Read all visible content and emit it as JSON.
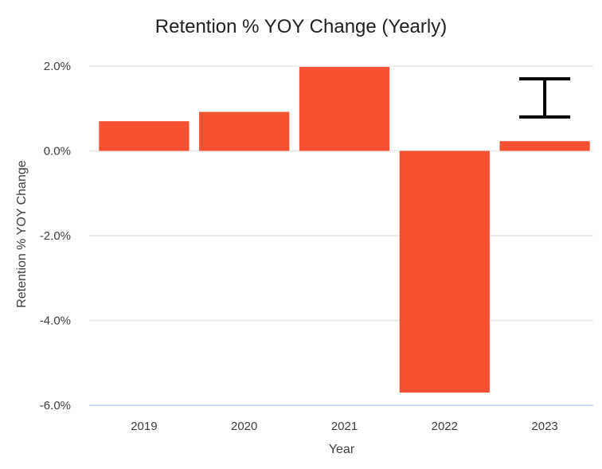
{
  "chart_data": {
    "type": "bar",
    "title": "Retention % YOY Change (Yearly)",
    "xlabel": "Year",
    "ylabel": "Retention % YOY Change",
    "categories": [
      "2019",
      "2020",
      "2021",
      "2022",
      "2023"
    ],
    "values": [
      0.7,
      0.92,
      1.98,
      -5.7,
      0.23
    ],
    "ylim": [
      -6.0,
      2.0
    ],
    "yticks": [
      {
        "value": 2.0,
        "label": "2.0%"
      },
      {
        "value": 0.0,
        "label": "0.0%"
      },
      {
        "value": -2.0,
        "label": "-2.0%"
      },
      {
        "value": -4.0,
        "label": "-4.0%"
      },
      {
        "value": -6.0,
        "label": "-6.0%"
      }
    ],
    "error_bar": {
      "category": "2023",
      "low": 0.8,
      "high": 1.7
    },
    "grid": true,
    "colors": {
      "bar": "#f65130",
      "error_bar": "#000000",
      "grid": "#e3e6ea"
    }
  }
}
